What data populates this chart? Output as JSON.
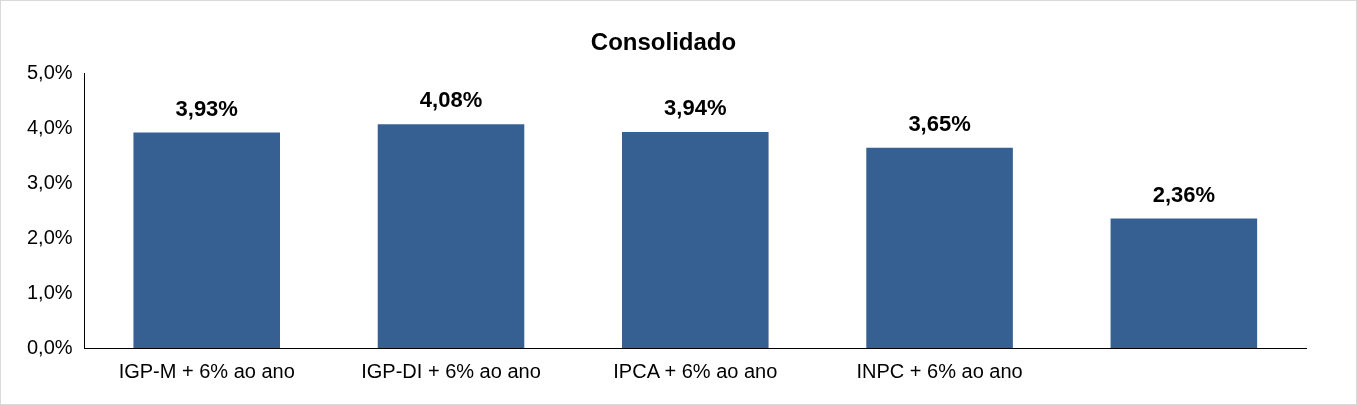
{
  "chart_data": {
    "type": "bar",
    "title": "Consolidado",
    "categories": [
      "IGP-M + 6% ao ano",
      "IGP-DI + 6% ao ano",
      "IPCA + 6% ao ano",
      "INPC + 6% ao ano",
      null
    ],
    "values": [
      3.93,
      4.08,
      3.94,
      3.65,
      2.36
    ],
    "value_labels": [
      "3,93%",
      "4,08%",
      "3,94%",
      "3,65%",
      "2,36%"
    ],
    "color": "#376092",
    "ylim": [
      0,
      5
    ],
    "yticks": [
      {
        "value": 0,
        "label": "0,0%"
      },
      {
        "value": 1,
        "label": "1,0%"
      },
      {
        "value": 2,
        "label": "2,0%"
      },
      {
        "value": 3,
        "label": "3,0%"
      },
      {
        "value": 4,
        "label": "4,0%"
      },
      {
        "value": 5,
        "label": "5,0%"
      }
    ],
    "grid": false,
    "legend": false
  }
}
